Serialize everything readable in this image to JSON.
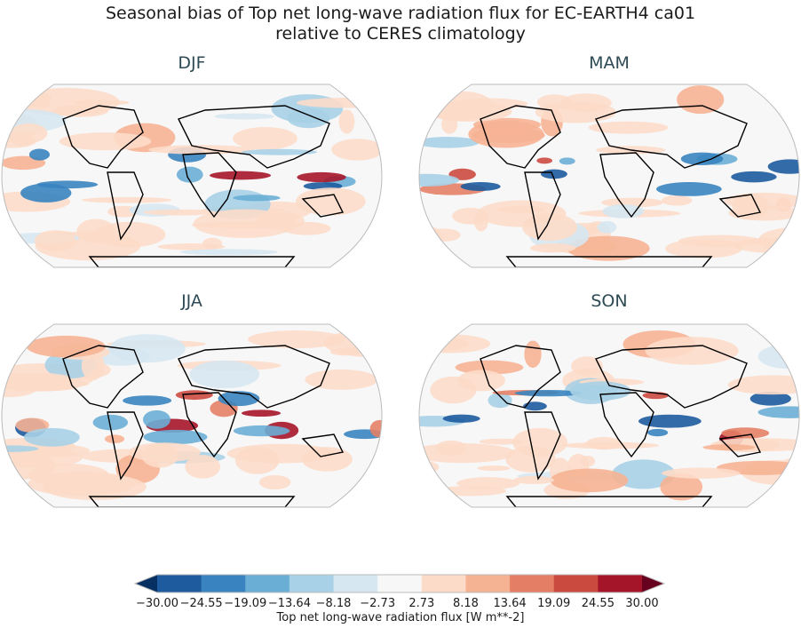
{
  "title_line1": "Seasonal bias of Top net long-wave radiation flux for EC-EARTH4 ca01",
  "title_line2": "relative to CERES climatology",
  "panels": [
    {
      "label": "DJF"
    },
    {
      "label": "MAM"
    },
    {
      "label": "JJA"
    },
    {
      "label": "SON"
    }
  ],
  "colorbar": {
    "label": "Top net long-wave radiation flux [W m**-2]",
    "ticks": [
      "−30.00",
      "−24.55",
      "−19.09",
      "−13.64",
      "−8.18",
      "−2.73",
      "2.73",
      "8.18",
      "13.64",
      "19.09",
      "24.55",
      "30.00"
    ],
    "range": [
      -30,
      30
    ],
    "extend": "both",
    "colors": [
      "#1d5b9e",
      "#3984c0",
      "#6aaed5",
      "#a8d0e6",
      "#d6e7f1",
      "#f7f7f7",
      "#fcdbc9",
      "#f6b393",
      "#e47f66",
      "#cb4a40",
      "#a51529"
    ],
    "under_color": "#053061",
    "over_color": "#67001f"
  },
  "projection": "Robinson"
}
